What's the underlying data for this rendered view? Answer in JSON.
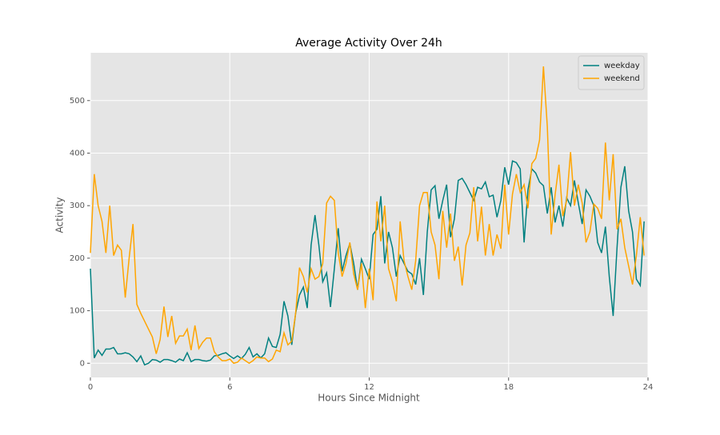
{
  "chart_data": {
    "type": "line",
    "title": "Average Activity Over 24h",
    "x_label": "Hours Since Midnight",
    "y_label": "Activity",
    "x": [
      0,
      0.167,
      0.333,
      0.5,
      0.667,
      0.833,
      1,
      1.167,
      1.333,
      1.5,
      1.667,
      1.833,
      2,
      2.167,
      2.333,
      2.5,
      2.667,
      2.833,
      3,
      3.167,
      3.333,
      3.5,
      3.667,
      3.833,
      4,
      4.167,
      4.333,
      4.5,
      4.667,
      4.833,
      5,
      5.167,
      5.333,
      5.5,
      5.667,
      5.833,
      6,
      6.167,
      6.333,
      6.5,
      6.667,
      6.833,
      7,
      7.167,
      7.333,
      7.5,
      7.667,
      7.833,
      8,
      8.167,
      8.333,
      8.5,
      8.667,
      8.833,
      9,
      9.167,
      9.333,
      9.5,
      9.667,
      9.833,
      10,
      10.167,
      10.333,
      10.5,
      10.667,
      10.833,
      11,
      11.167,
      11.333,
      11.5,
      11.667,
      11.833,
      12,
      12.167,
      12.333,
      12.5,
      12.667,
      12.833,
      13,
      13.167,
      13.333,
      13.5,
      13.667,
      13.833,
      14,
      14.167,
      14.333,
      14.5,
      14.667,
      14.833,
      15,
      15.167,
      15.333,
      15.5,
      15.667,
      15.833,
      16,
      16.167,
      16.333,
      16.5,
      16.667,
      16.833,
      17,
      17.167,
      17.333,
      17.5,
      17.667,
      17.833,
      18,
      18.167,
      18.333,
      18.5,
      18.667,
      18.833,
      19,
      19.167,
      19.333,
      19.5,
      19.667,
      19.833,
      20,
      20.167,
      20.333,
      20.5,
      20.667,
      20.833,
      21,
      21.167,
      21.333,
      21.5,
      21.667,
      21.833,
      22,
      22.167,
      22.333,
      22.5,
      22.667,
      22.833,
      23,
      23.167,
      23.333,
      23.5,
      23.667,
      23.833
    ],
    "series": [
      {
        "name": "weekday",
        "color": "#008080",
        "values": [
          180,
          10,
          25,
          15,
          27,
          27,
          30,
          18,
          18,
          20,
          18,
          12,
          3,
          14,
          -3,
          0,
          7,
          6,
          2,
          7,
          7,
          5,
          2,
          8,
          5,
          20,
          3,
          7,
          7,
          5,
          4,
          6,
          14,
          15,
          18,
          20,
          14,
          9,
          14,
          9,
          17,
          30,
          12,
          18,
          10,
          18,
          48,
          32,
          30,
          55,
          118,
          90,
          35,
          95,
          130,
          145,
          105,
          225,
          282,
          225,
          155,
          172,
          107,
          180,
          257,
          175,
          205,
          228,
          190,
          140,
          198,
          180,
          160,
          245,
          255,
          318,
          190,
          250,
          220,
          165,
          205,
          190,
          175,
          170,
          150,
          200,
          130,
          250,
          330,
          338,
          275,
          310,
          340,
          240,
          275,
          348,
          352,
          340,
          325,
          310,
          335,
          332,
          345,
          317,
          320,
          278,
          310,
          373,
          340,
          385,
          382,
          370,
          230,
          330,
          370,
          362,
          345,
          338,
          285,
          335,
          268,
          300,
          260,
          315,
          300,
          348,
          305,
          265,
          330,
          318,
          300,
          230,
          210,
          260,
          165,
          90,
          220,
          335,
          375,
          290,
          250,
          160,
          148,
          270
        ]
      },
      {
        "name": "weekend",
        "color": "#ffa500",
        "values": [
          210,
          360,
          300,
          270,
          210,
          300,
          205,
          225,
          215,
          125,
          200,
          265,
          112,
          95,
          80,
          65,
          50,
          18,
          45,
          108,
          50,
          90,
          38,
          52,
          52,
          65,
          25,
          72,
          28,
          40,
          48,
          48,
          22,
          12,
          5,
          5,
          8,
          0,
          2,
          10,
          5,
          0,
          5,
          12,
          10,
          10,
          3,
          8,
          25,
          22,
          58,
          35,
          42,
          95,
          182,
          165,
          135,
          180,
          160,
          165,
          190,
          305,
          318,
          310,
          210,
          165,
          190,
          230,
          170,
          140,
          190,
          105,
          180,
          120,
          308,
          232,
          300,
          180,
          155,
          118,
          270,
          195,
          165,
          140,
          195,
          300,
          325,
          325,
          250,
          225,
          160,
          290,
          220,
          285,
          195,
          222,
          148,
          225,
          248,
          335,
          232,
          298,
          205,
          265,
          205,
          245,
          218,
          340,
          245,
          322,
          360,
          325,
          340,
          295,
          380,
          390,
          425,
          565,
          450,
          245,
          320,
          378,
          280,
          310,
          402,
          300,
          340,
          305,
          230,
          250,
          303,
          295,
          275,
          420,
          310,
          398,
          255,
          275,
          220,
          185,
          150,
          205,
          278,
          205
        ]
      }
    ],
    "xlim": [
      0,
      24
    ],
    "xticks": [
      0,
      6,
      12,
      18,
      24
    ],
    "ylim": [
      -27,
      591
    ],
    "yticks": [
      0,
      100,
      200,
      300,
      400,
      500
    ],
    "grid": true,
    "legend": "upper right"
  }
}
